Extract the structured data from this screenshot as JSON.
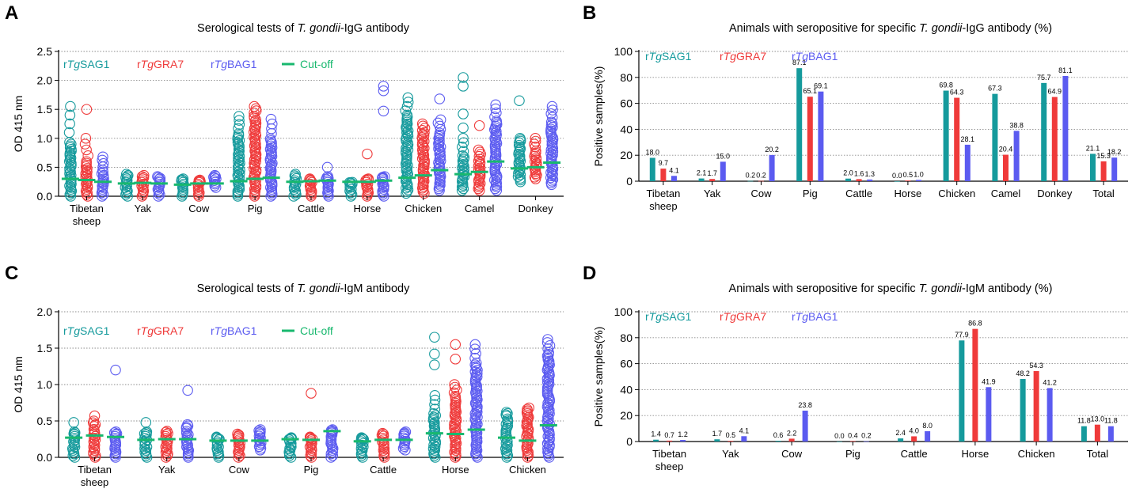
{
  "colors": {
    "sag1": "#159a9c",
    "gra7": "#ef3a3a",
    "bag1": "#5b5bf0",
    "cutoff": "#18b86e",
    "grid": "#8c8c8c"
  },
  "legend": {
    "prefix": "r",
    "tg": "Tg",
    "sag1": "SAG1",
    "gra7": "GRA7",
    "bag1": "BAG1",
    "cutoff": "Cut-off"
  },
  "chart_data": [
    {
      "panel": "A",
      "type": "scatter",
      "title_pre": "Serological tests of ",
      "title_it": "T. gondii",
      "title_post": "-IgG antibody",
      "ylabel": "OD 415 nm",
      "ylim": [
        0,
        2.5
      ],
      "yticks": [
        "0.0",
        "0.5",
        "1.0",
        "1.5",
        "2.0",
        "2.5"
      ],
      "categories": [
        [
          "Tibetan",
          "sheep"
        ],
        [
          "Yak"
        ],
        [
          "Cow"
        ],
        [
          "Pig"
        ],
        [
          "Cattle"
        ],
        [
          "Horse"
        ],
        [
          "Chicken"
        ],
        [
          "Camel"
        ],
        [
          "Donkey"
        ]
      ],
      "groups": [
        {
          "sag1": {
            "min": 0.0,
            "max": 1.55,
            "dense": 0.95,
            "out": []
          },
          "gra7": {
            "min": 0.0,
            "max": 1.0,
            "dense": 0.6,
            "out": [
              1.5
            ]
          },
          "bag1": {
            "min": 0.0,
            "max": 0.68,
            "dense": 0.45,
            "out": []
          },
          "cutoff": [
            0.3,
            0.28,
            0.25
          ]
        },
        {
          "sag1": {
            "min": 0.0,
            "max": 0.38,
            "dense": 0.3,
            "out": []
          },
          "gra7": {
            "min": 0.0,
            "max": 0.36,
            "dense": 0.28,
            "out": []
          },
          "bag1": {
            "min": 0.0,
            "max": 0.34,
            "dense": 0.28,
            "out": []
          },
          "cutoff": [
            0.22,
            0.23,
            0.22
          ]
        },
        {
          "sag1": {
            "min": 0.0,
            "max": 0.3,
            "dense": 0.25,
            "out": []
          },
          "gra7": {
            "min": 0.0,
            "max": 0.28,
            "dense": 0.24,
            "out": []
          },
          "bag1": {
            "min": 0.15,
            "max": 0.36,
            "dense": 0.3,
            "out": []
          },
          "cutoff": [
            0.2,
            0.22,
            0.22
          ]
        },
        {
          "sag1": {
            "min": 0.0,
            "max": 1.38,
            "dense": 1.1,
            "out": []
          },
          "gra7": {
            "min": 0.0,
            "max": 1.55,
            "dense": 1.4,
            "out": []
          },
          "bag1": {
            "min": 0.0,
            "max": 1.33,
            "dense": 1.0,
            "out": []
          },
          "cutoff": [
            0.26,
            0.3,
            0.32
          ]
        },
        {
          "sag1": {
            "min": 0.0,
            "max": 0.38,
            "dense": 0.28,
            "out": []
          },
          "gra7": {
            "min": 0.0,
            "max": 0.3,
            "dense": 0.25,
            "out": []
          },
          "bag1": {
            "min": 0.0,
            "max": 0.34,
            "dense": 0.28,
            "out": [
              0.5
            ]
          },
          "cutoff": [
            0.25,
            0.26,
            0.27
          ]
        },
        {
          "sag1": {
            "min": 0.0,
            "max": 0.24,
            "dense": 0.22,
            "out": []
          },
          "gra7": {
            "min": 0.0,
            "max": 0.3,
            "dense": 0.26,
            "out": [
              0.73
            ]
          },
          "bag1": {
            "min": 0.0,
            "max": 0.34,
            "dense": 0.3,
            "out": [
              1.47,
              1.82,
              1.9
            ]
          },
          "cutoff": [
            0.25,
            0.25,
            0.27
          ]
        },
        {
          "sag1": {
            "min": 0.05,
            "max": 1.7,
            "dense": 1.4,
            "out": []
          },
          "gra7": {
            "min": 0.05,
            "max": 1.25,
            "dense": 1.1,
            "out": []
          },
          "bag1": {
            "min": 0.1,
            "max": 1.32,
            "dense": 1.1,
            "out": [
              1.68
            ]
          },
          "cutoff": [
            0.32,
            0.36,
            0.45
          ]
        },
        {
          "sag1": {
            "min": 0.1,
            "max": 1.0,
            "dense": 0.7,
            "out": [
              1.18,
              1.42,
              1.9,
              2.05
            ]
          },
          "gra7": {
            "min": 0.1,
            "max": 0.8,
            "dense": 0.65,
            "out": [
              1.22
            ]
          },
          "bag1": {
            "min": 0.1,
            "max": 1.58,
            "dense": 1.3,
            "out": []
          },
          "cutoff": [
            0.38,
            0.42,
            0.6
          ]
        },
        {
          "sag1": {
            "min": 0.25,
            "max": 1.0,
            "dense": 0.9,
            "out": [
              1.65
            ]
          },
          "gra7": {
            "min": 0.3,
            "max": 1.0,
            "dense": 0.8,
            "out": []
          },
          "bag1": {
            "min": 0.2,
            "max": 1.55,
            "dense": 1.3,
            "out": []
          },
          "cutoff": [
            0.48,
            0.5,
            0.58
          ]
        }
      ]
    },
    {
      "panel": "B",
      "type": "bar",
      "title_pre": "Animals with seropositive for specific ",
      "title_it": "T. gondii",
      "title_post": "-IgG antibody (%)",
      "ylabel": "Positive samples(%)",
      "ylim": [
        0,
        100
      ],
      "yticks": [
        "0",
        "20",
        "40",
        "60",
        "80",
        "100"
      ],
      "categories": [
        [
          "Tibetan",
          "sheep"
        ],
        [
          "Yak"
        ],
        [
          "Cow"
        ],
        [
          "Pig"
        ],
        [
          "Cattle"
        ],
        [
          "Horse"
        ],
        [
          "Chicken"
        ],
        [
          "Camel"
        ],
        [
          "Donkey"
        ],
        [
          "Total"
        ]
      ],
      "series": [
        {
          "name": "rTgSAG1",
          "values": [
            18.0,
            2.1,
            0.2,
            87.1,
            2.0,
            0.0,
            69.8,
            67.3,
            75.7,
            21.1
          ],
          "labels": [
            "18.0",
            "2.1",
            "0.2",
            "87.1",
            "2.0",
            "0.0",
            "69.8",
            "67.3",
            "75.7",
            "21.1"
          ]
        },
        {
          "name": "rTgGRA7",
          "values": [
            9.7,
            1.7,
            0.2,
            65.1,
            1.6,
            0.5,
            64.3,
            20.4,
            64.9,
            15.3
          ],
          "labels": [
            "9.7",
            "1.7",
            "0.2",
            "65.1",
            "1.6",
            "0.5",
            "64.3",
            "20.4",
            "64.9",
            "15.3"
          ]
        },
        {
          "name": "rTgBAG1",
          "values": [
            4.1,
            15.0,
            20.2,
            69.1,
            1.3,
            1.0,
            28.1,
            38.8,
            81.1,
            18.2
          ],
          "labels": [
            "4.1",
            "15.0",
            "20.2",
            "69.1",
            "1.3",
            "1.0",
            "28.1",
            "38.8",
            "81.1",
            "18.2"
          ]
        }
      ]
    },
    {
      "panel": "C",
      "type": "scatter",
      "title_pre": "Serological tests of ",
      "title_it": "T. gondii",
      "title_post": "-IgM antibody",
      "ylabel": "OD 415 nm",
      "ylim": [
        0,
        2.0
      ],
      "yticks": [
        "0.0",
        "0.5",
        "1.0",
        "1.5",
        "2.0"
      ],
      "categories": [
        [
          "Tibetan",
          "sheep"
        ],
        [
          "Yak"
        ],
        [
          "Cow"
        ],
        [
          "Pig"
        ],
        [
          "Cattle"
        ],
        [
          "Horse"
        ],
        [
          "Chicken"
        ]
      ],
      "groups": [
        {
          "sag1": {
            "min": 0.0,
            "max": 0.35,
            "dense": 0.3,
            "out": [
              0.48
            ]
          },
          "gra7": {
            "min": 0.0,
            "max": 0.5,
            "dense": 0.4,
            "out": [
              0.57
            ]
          },
          "bag1": {
            "min": 0.0,
            "max": 0.35,
            "dense": 0.3,
            "out": [
              1.2
            ]
          },
          "cutoff": [
            0.27,
            0.3,
            0.28
          ]
        },
        {
          "sag1": {
            "min": 0.0,
            "max": 0.35,
            "dense": 0.3,
            "out": [
              0.48
            ]
          },
          "gra7": {
            "min": 0.0,
            "max": 0.36,
            "dense": 0.3,
            "out": []
          },
          "bag1": {
            "min": 0.0,
            "max": 0.45,
            "dense": 0.38,
            "out": [
              0.92
            ]
          },
          "cutoff": [
            0.24,
            0.25,
            0.25
          ]
        },
        {
          "sag1": {
            "min": 0.0,
            "max": 0.28,
            "dense": 0.24,
            "out": []
          },
          "gra7": {
            "min": 0.0,
            "max": 0.32,
            "dense": 0.27,
            "out": []
          },
          "bag1": {
            "min": 0.1,
            "max": 0.38,
            "dense": 0.32,
            "out": []
          },
          "cutoff": [
            0.23,
            0.23,
            0.23
          ]
        },
        {
          "sag1": {
            "min": 0.0,
            "max": 0.27,
            "dense": 0.24,
            "out": []
          },
          "gra7": {
            "min": 0.0,
            "max": 0.28,
            "dense": 0.24,
            "out": [
              0.88
            ]
          },
          "bag1": {
            "min": 0.0,
            "max": 0.38,
            "dense": 0.34,
            "out": []
          },
          "cutoff": [
            0.25,
            0.24,
            0.36
          ]
        },
        {
          "sag1": {
            "min": 0.0,
            "max": 0.27,
            "dense": 0.24,
            "out": []
          },
          "gra7": {
            "min": 0.0,
            "max": 0.33,
            "dense": 0.28,
            "out": []
          },
          "bag1": {
            "min": 0.1,
            "max": 0.35,
            "dense": 0.3,
            "out": []
          },
          "cutoff": [
            0.22,
            0.24,
            0.24
          ]
        },
        {
          "sag1": {
            "min": 0.0,
            "max": 0.85,
            "dense": 0.6,
            "out": [
              1.27,
              1.42,
              1.65
            ]
          },
          "gra7": {
            "min": 0.0,
            "max": 1.0,
            "dense": 0.85,
            "out": [
              1.35,
              1.55
            ]
          },
          "bag1": {
            "min": 0.0,
            "max": 1.55,
            "dense": 1.3,
            "out": []
          },
          "cutoff": [
            0.33,
            0.32,
            0.38
          ]
        },
        {
          "sag1": {
            "min": 0.0,
            "max": 0.62,
            "dense": 0.55,
            "out": []
          },
          "gra7": {
            "min": 0.0,
            "max": 0.68,
            "dense": 0.6,
            "out": []
          },
          "bag1": {
            "min": 0.0,
            "max": 1.62,
            "dense": 1.45,
            "out": []
          },
          "cutoff": [
            0.27,
            0.23,
            0.44
          ]
        }
      ]
    },
    {
      "panel": "D",
      "type": "bar",
      "title_pre": "Animals with seropositive for specific ",
      "title_it": "T. gondii",
      "title_post": "-IgM antibody (%)",
      "ylabel": "Positive samples(%)",
      "ylim": [
        0,
        100
      ],
      "yticks": [
        "0",
        "20",
        "40",
        "60",
        "80",
        "100"
      ],
      "categories": [
        [
          "Tibetan",
          "sheep"
        ],
        [
          "Yak"
        ],
        [
          "Cow"
        ],
        [
          "Pig"
        ],
        [
          "Cattle"
        ],
        [
          "Horse"
        ],
        [
          "Chicken"
        ],
        [
          "Total"
        ]
      ],
      "series": [
        {
          "name": "rTgSAG1",
          "values": [
            1.4,
            1.7,
            0.6,
            0.0,
            2.4,
            77.9,
            48.2,
            11.8
          ],
          "labels": [
            "1.4",
            "1.7",
            "0.6",
            "0.0",
            "2.4",
            "77.9",
            "48.2",
            "11.8"
          ]
        },
        {
          "name": "rTgGRA7",
          "values": [
            0.7,
            0.5,
            2.2,
            0.4,
            4.0,
            86.8,
            54.3,
            13.0
          ],
          "labels": [
            "0.7",
            "0.5",
            "2.2",
            "0.4",
            "4.0",
            "86.8",
            "54.3",
            "13.0"
          ]
        },
        {
          "name": "rTgBAG1",
          "values": [
            1.2,
            4.1,
            23.8,
            0.2,
            8.0,
            41.9,
            41.2,
            11.8
          ],
          "labels": [
            "1.2",
            "4.1",
            "23.8",
            "0.2",
            "8.0",
            "41.9",
            "41.2",
            "11.8"
          ]
        }
      ]
    }
  ]
}
